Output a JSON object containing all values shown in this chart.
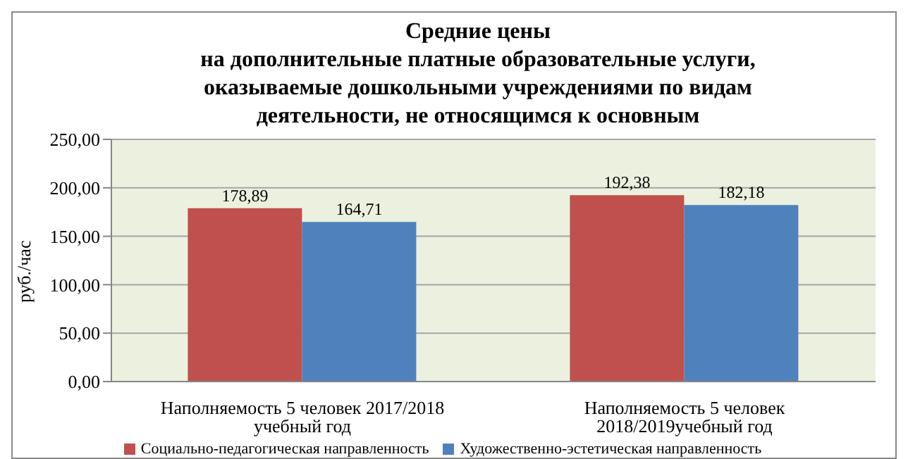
{
  "chart_data": {
    "type": "bar",
    "title": "Средние цены\nна дополнительные платные образовательные услуги,\nоказываемые дошкольными учреждениями по видам\nдеятельности, не относящимся к основным",
    "ylabel": "руб./час",
    "categories": [
      "Наполняемость 5 человек 2017/2018 учебный год",
      "Наполняемость 5 человек 2018/2019учебный год"
    ],
    "series": [
      {
        "name": "Социально-педагогическая направленность",
        "color": "#c0504d",
        "values": [
          178.89,
          192.38
        ],
        "value_labels": [
          "178,89",
          "192,38"
        ]
      },
      {
        "name": "Художественно-эстетическая направленность",
        "color": "#4f81bd",
        "values": [
          164.71,
          182.18
        ],
        "value_labels": [
          "164,71",
          "182,18"
        ]
      }
    ],
    "ylim": [
      0,
      250
    ],
    "yticks": [
      {
        "value": 0,
        "label": "0,00"
      },
      {
        "value": 50,
        "label": "50,00"
      },
      {
        "value": 100,
        "label": "100,00"
      },
      {
        "value": 150,
        "label": "150,00"
      },
      {
        "value": 200,
        "label": "200,00"
      },
      {
        "value": 250,
        "label": "250,00"
      }
    ],
    "grid": "y",
    "legend": "bottom"
  }
}
